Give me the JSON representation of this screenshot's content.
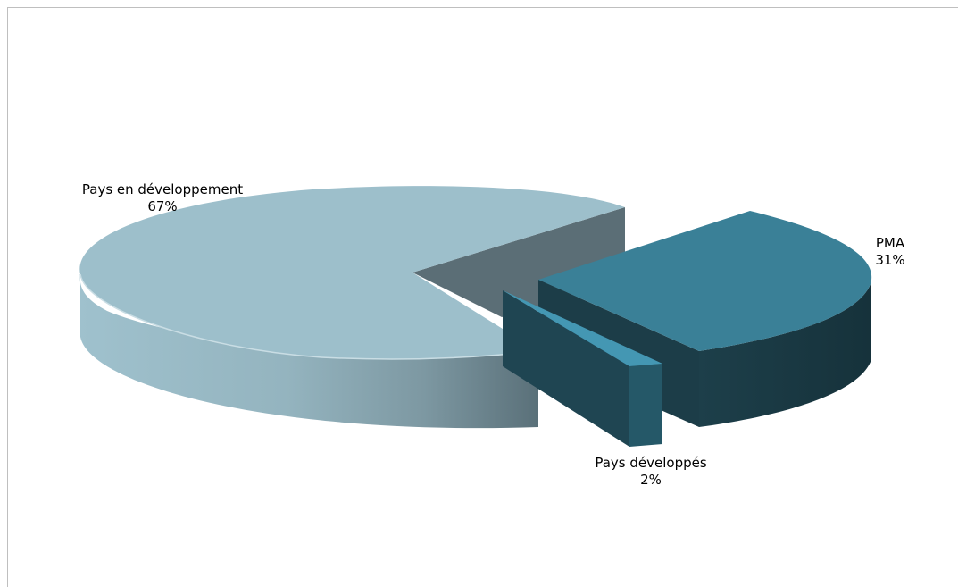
{
  "chart_data": {
    "type": "pie",
    "title": "",
    "slices": [
      {
        "name": "Pays en développement",
        "value": 67,
        "label": "67%",
        "color": "#9dbfcb"
      },
      {
        "name": "PMA",
        "value": 31,
        "label": "31%",
        "color": "#3a8097"
      },
      {
        "name": "Pays développés",
        "value": 2,
        "label": "2%",
        "color": "#4497b3"
      }
    ],
    "style": "3d-exploded",
    "legend": "none"
  }
}
